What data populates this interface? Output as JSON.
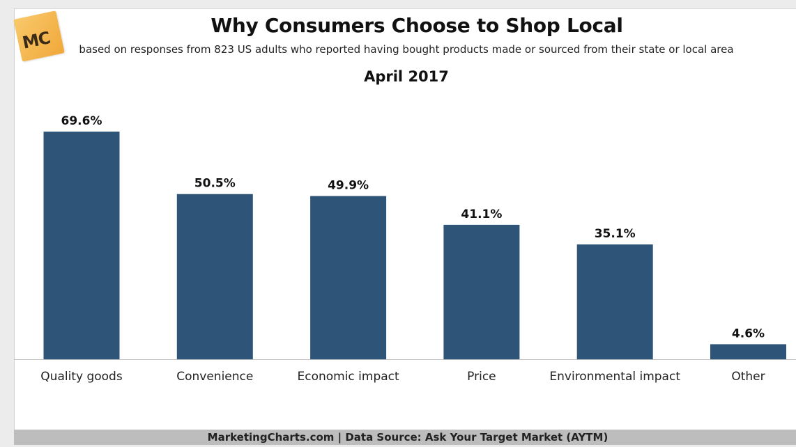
{
  "logo_text": "MC",
  "chart_data": {
    "type": "bar",
    "title": "Why Consumers Choose to Shop Local",
    "subtitle": "based on responses from 823 US adults who reported having bought products made or sourced from their state or local area",
    "date": "April 2017",
    "categories": [
      "Quality goods",
      "Convenience",
      "Economic impact",
      "Price",
      "Environmental impact",
      "Other"
    ],
    "values": [
      69.6,
      50.5,
      49.9,
      41.1,
      35.1,
      4.6
    ],
    "value_labels": [
      "69.6%",
      "50.5%",
      "49.9%",
      "41.1%",
      "35.1%",
      "4.6%"
    ],
    "unit": "%",
    "bar_color": "#2e5578",
    "ylim": [
      0,
      69.6
    ],
    "grid": false,
    "legend": "none"
  },
  "footer": "MarketingCharts.com | Data Source: Ask Your Target Market (AYTM)"
}
